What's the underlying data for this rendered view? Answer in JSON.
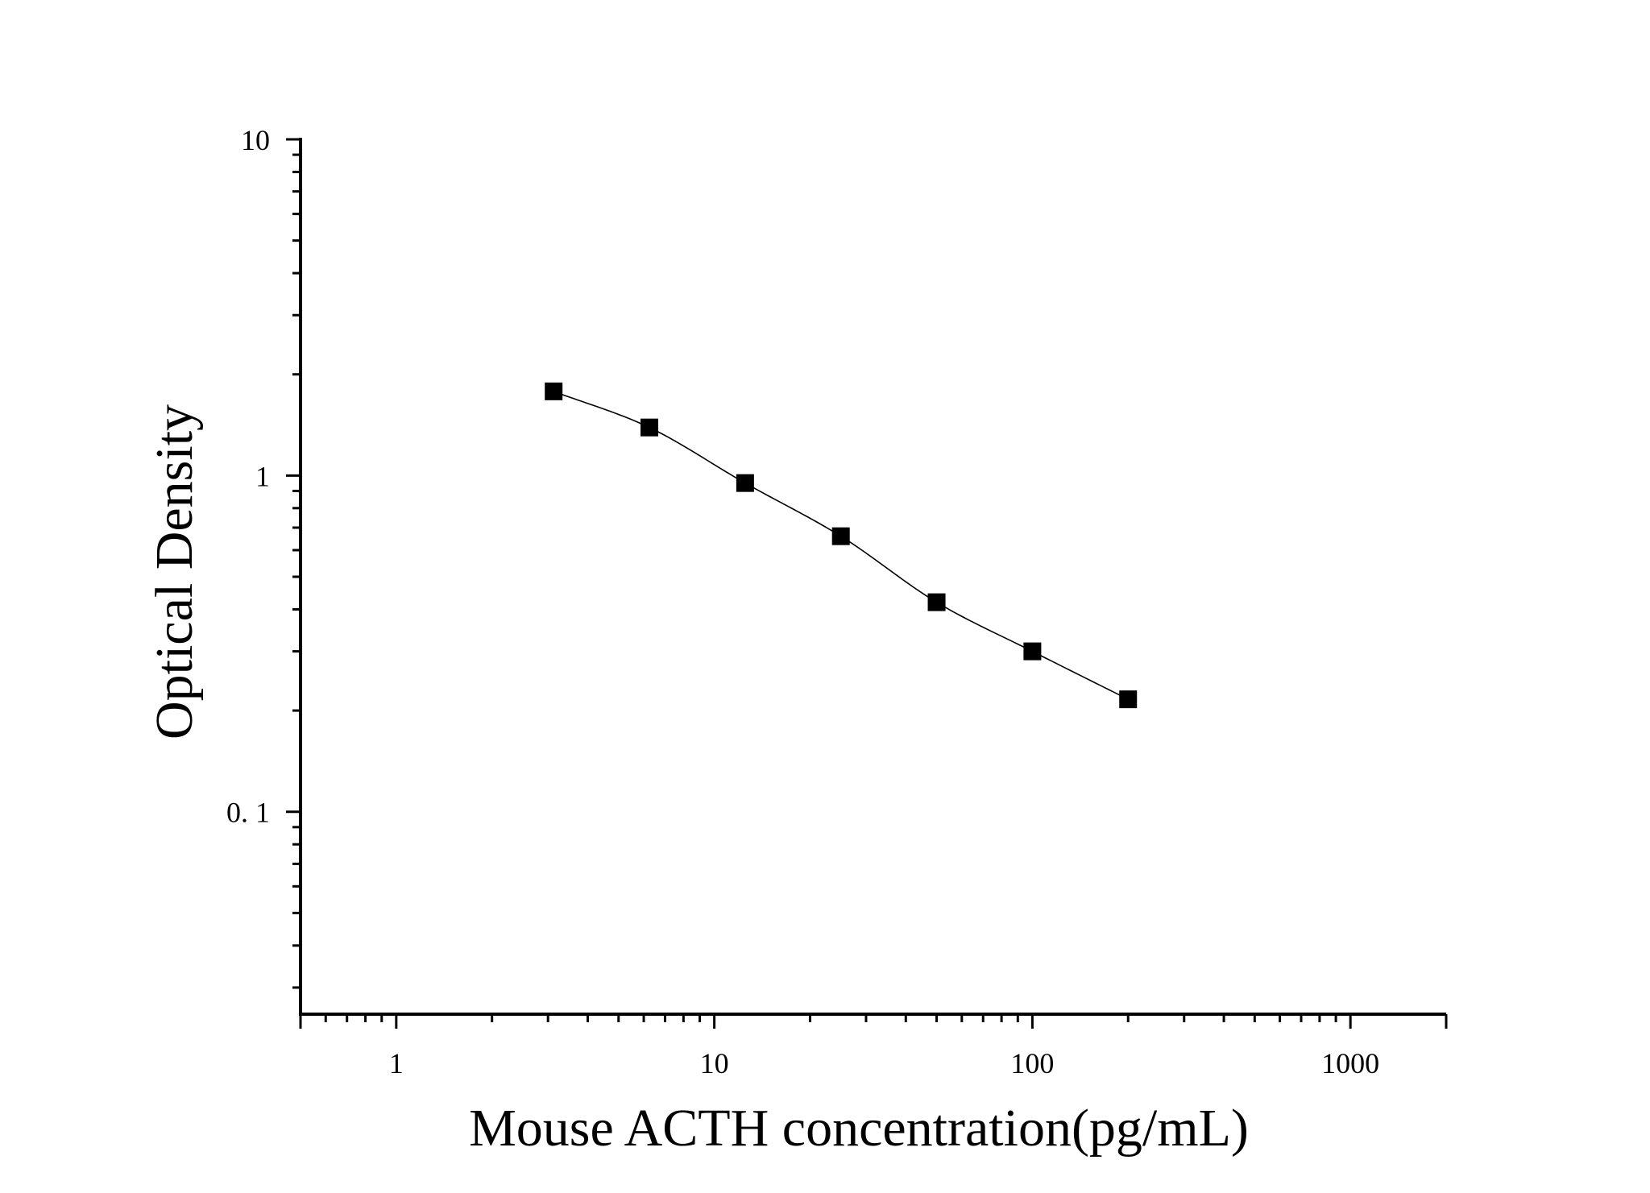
{
  "chart_data": {
    "type": "scatter",
    "title": "",
    "xlabel": "Mouse ACTH concentration(pg/mL)",
    "ylabel": "Optical Density",
    "x_scale": "log",
    "y_scale": "log",
    "xlim": [
      0.5,
      2000
    ],
    "ylim": [
      0.025,
      10
    ],
    "x_tick_values": [
      1,
      10,
      100,
      1000
    ],
    "x_tick_labels": [
      "1",
      "10",
      "100",
      "1000"
    ],
    "y_tick_values": [
      0.1,
      1,
      10
    ],
    "y_tick_labels": [
      "0. 1",
      "1",
      "10"
    ],
    "grid": false,
    "legend": "none",
    "series": [
      {
        "x": [
          3.125,
          6.25,
          12.5,
          25,
          50,
          100,
          200
        ],
        "y": [
          1.78,
          1.39,
          0.95,
          0.66,
          0.42,
          0.3,
          0.216
        ],
        "marker": "square",
        "fit_curve": "smooth"
      }
    ],
    "colors": {
      "marker": "#000000",
      "line": "#000000",
      "axis": "#000000"
    }
  }
}
